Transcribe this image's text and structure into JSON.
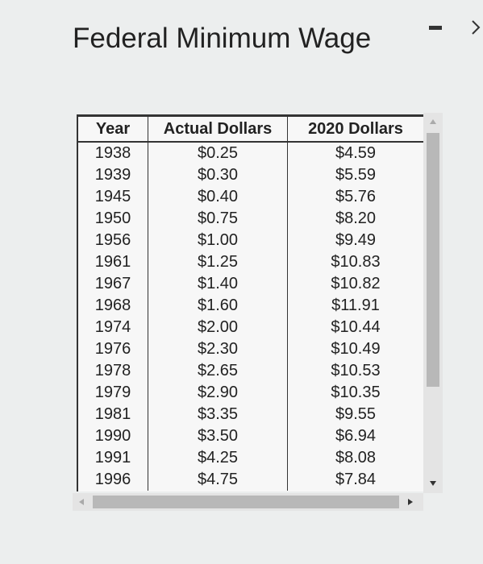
{
  "title": "Federal Minimum Wage",
  "table": {
    "header": [
      "Year",
      "Actual Dollars",
      "2020 Dollars"
    ],
    "rows": [
      [
        "1938",
        "$0.25",
        "$4.59"
      ],
      [
        "1939",
        "$0.30",
        "$5.59"
      ],
      [
        "1945",
        "$0.40",
        "$5.76"
      ],
      [
        "1950",
        "$0.75",
        "$8.20"
      ],
      [
        "1956",
        "$1.00",
        "$9.49"
      ],
      [
        "1961",
        "$1.25",
        "$10.83"
      ],
      [
        "1967",
        "$1.40",
        "$10.82"
      ],
      [
        "1968",
        "$1.60",
        "$11.91"
      ],
      [
        "1974",
        "$2.00",
        "$10.44"
      ],
      [
        "1976",
        "$2.30",
        "$10.49"
      ],
      [
        "1978",
        "$2.65",
        "$10.53"
      ],
      [
        "1979",
        "$2.90",
        "$10.35"
      ],
      [
        "1981",
        "$3.35",
        "$9.55"
      ],
      [
        "1990",
        "$3.50",
        "$6.94"
      ],
      [
        "1991",
        "$4.25",
        "$8.08"
      ],
      [
        "1996",
        "$4.75",
        "$7.84"
      ]
    ]
  }
}
